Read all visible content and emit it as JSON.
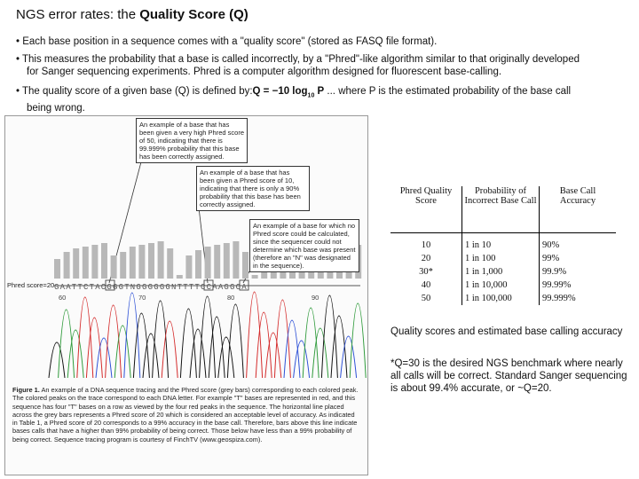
{
  "title": {
    "prefix": "NGS error rates: the ",
    "bold": "Quality Score (Q)"
  },
  "bullets": {
    "b1": "• Each base position in a sequence comes with a \"quality score\" (stored as FASQ file format).",
    "b2_line1": "• This measures the probability that a base is called incorrectly, by a \"Phred\"-like algorithm similar to that originally developed",
    "b2_line2": "for Sanger sequencing experiments.  Phred is a computer algorithm designed for fluorescent base-calling.",
    "b3_prefix": "• The quality score of a given base (Q) is defined by:",
    "b3_formula": "Q = −10 log",
    "b3_sub": "10",
    "b3_var": " P",
    "b3_suffix": "   ... where P is the estimated probability of the base call",
    "b3_line2": "being wrong."
  },
  "figure": {
    "callout1": "An example of a base that has been given a very high Phred score of 50, indicating that there is 99.999% probability that this base has been correctly assigned.",
    "callout2": "An example of a base that has been given a Phred score of 10, indicating that there is only a 90% probability that this base has been correctly assigned.",
    "callout3": "An example of a base for which no Phred score could be calculated, since the sequencer could not determine which base was present (therefore an \"N\" was designated in the sequence).",
    "phred_label": "Phred score=20",
    "sequence": "GAATTCTACGGGTNGGGGGGNTTTTCCAAGGCA",
    "positions": [
      "60",
      "70",
      "80",
      "90"
    ],
    "caption_bold": "Figure 1.",
    "caption_text": " An example of a DNA sequence tracing and the Phred score (grey bars) corresponding to each colored peak. The colored peaks on the trace correspond to each DNA letter. For example \"T\" bases are represented in red, and this sequence has four \"T\" bases on a row as viewed by the four red peaks in the sequence. The horizontal line placed across the grey bars represents a Phred score of 20 which is considered an acceptable level of accuracy. As indicated in Table 1, a Phred score of 20 corresponds to a 99% accuracy in the base call. Therefore, bars above this line indicate bases calls that have a higher than 99% probability of being correct. Those below have less than a 99% probability of being correct. Sequence tracing program is courtesy of FinchTV (www.geospiza.com)."
  },
  "table": {
    "headers": [
      "Phred Quality Score",
      "Probability of Incorrect Base Call",
      "Base Call Accuracy"
    ],
    "rows": [
      [
        "10",
        "1 in 10",
        "90%"
      ],
      [
        "20",
        "1 in 100",
        "99%"
      ],
      [
        "30*",
        "1 in 1,000",
        "99.9%"
      ],
      [
        "40",
        "1 in 10,000",
        "99.99%"
      ],
      [
        "50",
        "1 in 100,000",
        "99.999%"
      ]
    ]
  },
  "notes": {
    "n1": "Quality scores and estimated base calling accuracy",
    "n2": "*Q=30 is the desired NGS benchmark where nearly all calls will be correct.  Standard Sanger sequencing is about 99.4% accurate, or ~Q=20."
  },
  "colors": {
    "A": "#2e9a3a",
    "C": "#2b4fd6",
    "G": "#111111",
    "T": "#d42a2a",
    "bar": "#b8b8b8"
  }
}
